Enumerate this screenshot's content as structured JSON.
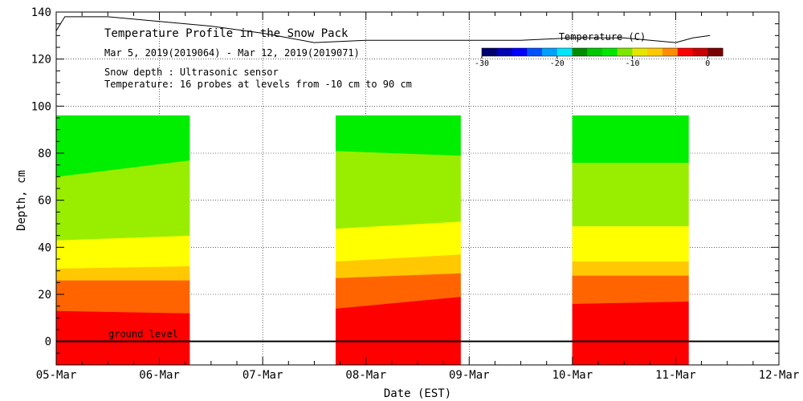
{
  "chart_data": {
    "type": "area",
    "title": "Temperature Profile in the Snow Pack",
    "subtitle": "Mar  5, 2019(2019064) - Mar 12, 2019(2019071)",
    "annotations": [
      "Snow depth : Ultrasonic sensor",
      "Temperature: 16 probes at levels from -10 cm to 90 cm"
    ],
    "ground_label": "ground level",
    "xlabel": "Date (EST)",
    "ylabel": "Depth, cm",
    "x_range": [
      "2019-03-05",
      "2019-03-12"
    ],
    "x_tick_labels": [
      "05-Mar",
      "06-Mar",
      "07-Mar",
      "08-Mar",
      "09-Mar",
      "10-Mar",
      "11-Mar",
      "12-Mar"
    ],
    "ylim": [
      -10,
      140
    ],
    "y_ticks": [
      0,
      20,
      40,
      60,
      80,
      100,
      120,
      140
    ],
    "grid": true,
    "colorbar": {
      "label": "Temperature (C)",
      "range": [
        -30,
        2
      ],
      "tick_labels": [
        "-30",
        "-20",
        "-10",
        "0"
      ],
      "tick_values": [
        -30,
        -20,
        -10,
        0
      ],
      "colors": [
        "#00006e",
        "#0000b4",
        "#0000ff",
        "#0050ff",
        "#00a0ff",
        "#00e6ff",
        "#008c00",
        "#00c800",
        "#00e600",
        "#7fe600",
        "#e6e600",
        "#ffc800",
        "#ff8c00",
        "#ff0000",
        "#c80000",
        "#780000"
      ]
    },
    "temperature_bands": [
      {
        "color": "#ff0000"
      },
      {
        "color": "#ff6400"
      },
      {
        "color": "#ffc800"
      },
      {
        "color": "#ffff00"
      },
      {
        "color": "#99ee00"
      },
      {
        "color": "#00ee00"
      }
    ],
    "segments": [
      {
        "start": "2019-03-05T00:00",
        "end": "2019-03-06T07:00",
        "top": 96,
        "boundaries_start": [
          13,
          26,
          31,
          43,
          70
        ],
        "boundaries_end": [
          12,
          26,
          32,
          45,
          77
        ]
      },
      {
        "start": "2019-03-07T17:00",
        "end": "2019-03-08T22:00",
        "top": 96,
        "boundaries_start": [
          14,
          27,
          34,
          48,
          81
        ],
        "boundaries_end": [
          19,
          29,
          37,
          51,
          79
        ]
      },
      {
        "start": "2019-03-10T00:00",
        "end": "2019-03-11T03:00",
        "top": 96,
        "boundaries_start": [
          16,
          28,
          34,
          49,
          76
        ],
        "boundaries_end": [
          17,
          28,
          34,
          49,
          76
        ]
      }
    ],
    "snow_depth": {
      "name": "Snow depth",
      "x": [
        "2019-03-05T00:00",
        "2019-03-05T02:00",
        "2019-03-05T12:00",
        "2019-03-06T00:00",
        "2019-03-06T12:00",
        "2019-03-07T00:00",
        "2019-03-07T12:00",
        "2019-03-08T00:00",
        "2019-03-08T12:00",
        "2019-03-09T00:00",
        "2019-03-09T12:00",
        "2019-03-10T00:00",
        "2019-03-10T12:00",
        "2019-03-11T00:00",
        "2019-03-11T04:00",
        "2019-03-11T08:00"
      ],
      "y": [
        132,
        138,
        138,
        136,
        134,
        131,
        127,
        128,
        128,
        128,
        128,
        129,
        129,
        127,
        129,
        130
      ]
    }
  }
}
